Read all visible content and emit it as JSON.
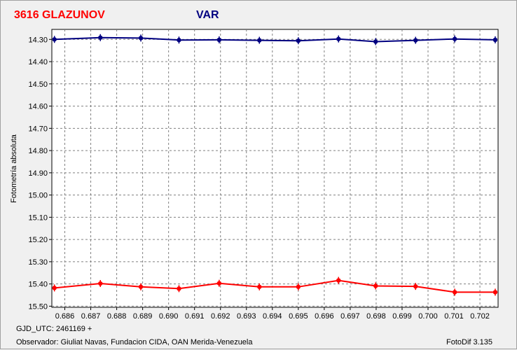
{
  "chart_data": {
    "type": "line",
    "title_object": "3616 GLAZUNOV",
    "title_series": "VAR",
    "ylabel": "Fotometría absoluta",
    "xlabel": "",
    "xlim": [
      0.6855,
      0.7027
    ],
    "ylim": [
      15.505,
      14.255
    ],
    "y_inverted": true,
    "grid": true,
    "x_ticks": [
      0.686,
      0.687,
      0.688,
      0.689,
      0.69,
      0.691,
      0.692,
      0.693,
      0.694,
      0.695,
      0.696,
      0.697,
      0.698,
      0.699,
      0.7,
      0.701,
      0.702
    ],
    "x_tick_labels": [
      "0.686",
      "0.687",
      "0.688",
      "0.689",
      "0.690",
      "0.691",
      "0.692",
      "0.693",
      "0.694",
      "0.695",
      "0.696",
      "0.697",
      "0.698",
      "0.699",
      "0.700",
      "0.701",
      "0.702"
    ],
    "y_ticks": [
      14.3,
      14.4,
      14.5,
      14.6,
      14.7,
      14.8,
      14.9,
      15.0,
      15.1,
      15.2,
      15.3,
      15.4,
      15.5
    ],
    "y_tick_labels": [
      "14.30",
      "14.40",
      "14.50",
      "14.60",
      "14.70",
      "14.80",
      "14.90",
      "15.00",
      "15.10",
      "15.20",
      "15.30",
      "15.40",
      "15.50"
    ],
    "series": [
      {
        "color": "#000080",
        "x": [
          0.6856,
          0.68737,
          0.68893,
          0.6904,
          0.69195,
          0.6935,
          0.695,
          0.69655,
          0.69798,
          0.69952,
          0.70103,
          0.70259
        ],
        "y": [
          14.3,
          14.292,
          14.294,
          14.303,
          14.302,
          14.304,
          14.306,
          14.298,
          14.31,
          14.304,
          14.298,
          14.302
        ]
      },
      {
        "color": "#ff0000",
        "x": [
          0.6856,
          0.68737,
          0.68893,
          0.6904,
          0.69195,
          0.6935,
          0.695,
          0.69655,
          0.69798,
          0.69952,
          0.70103,
          0.70259
        ],
        "y": [
          15.418,
          15.398,
          15.413,
          15.421,
          15.397,
          15.413,
          15.413,
          15.384,
          15.409,
          15.411,
          15.437,
          15.437
        ]
      }
    ]
  },
  "footer": {
    "gjd": "GJD_UTC: 2461169 +",
    "observer": "Observador: Giuliat Navas, Fundacion CIDA, OAN  Merida-Venezuela",
    "software": "FotoDif 3.135"
  },
  "colors": {
    "object_title": "#ff0000",
    "series_title": "#000080"
  }
}
